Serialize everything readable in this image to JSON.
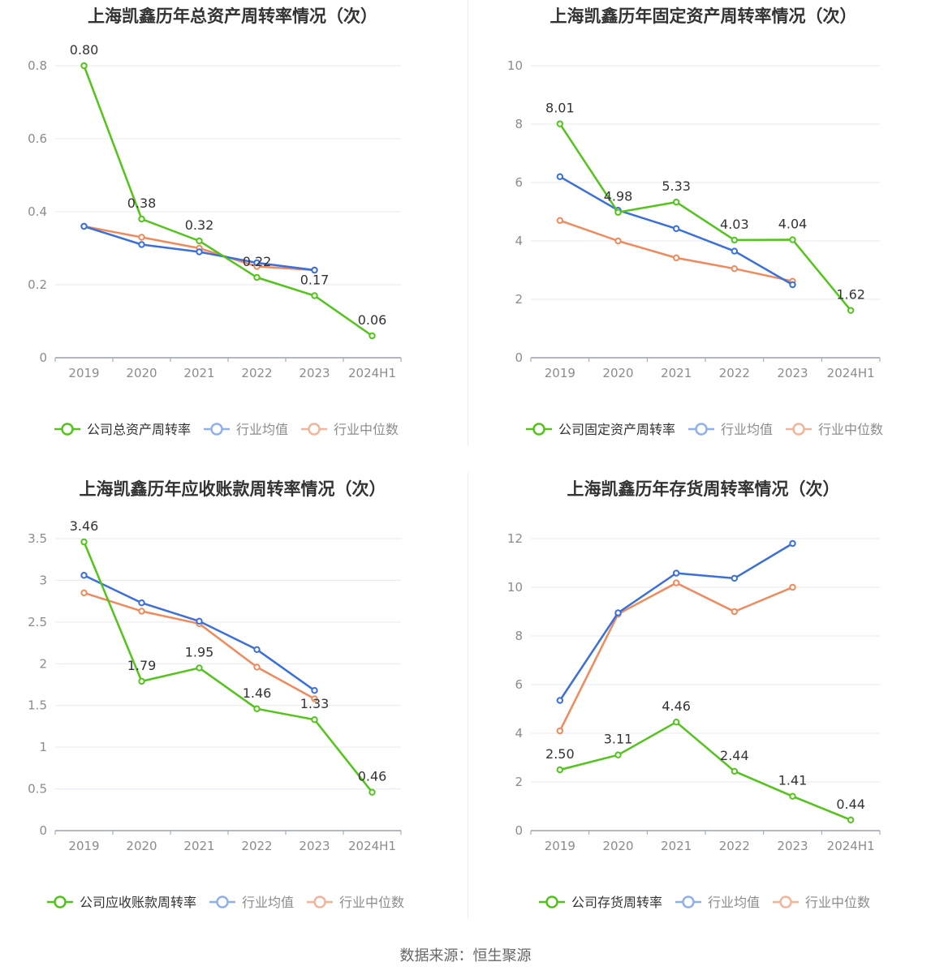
{
  "colors": {
    "company": "#52c41a",
    "average": "#3a6fdc",
    "median": "#f08a5d",
    "legend_average": "#8fb0ee",
    "legend_median": "#f4b49a"
  },
  "footer": "数据来源：恒生聚源",
  "chart_data": [
    {
      "type": "line",
      "title": "上海凯鑫历年总资产周转率情况（次）",
      "categories": [
        "2019",
        "2020",
        "2021",
        "2022",
        "2023",
        "2024H1"
      ],
      "ylim": [
        0,
        0.8
      ],
      "yticks": [
        0,
        0.2,
        0.4,
        0.6,
        0.8
      ],
      "ytick_labels": [
        "0",
        "0.2",
        "0.4",
        "0.6",
        "0.8"
      ],
      "grid": true,
      "legend_position": "bottom",
      "series": [
        {
          "name": "公司总资产周转率",
          "role": "company",
          "values": [
            0.8,
            0.38,
            0.32,
            0.22,
            0.17,
            0.06
          ],
          "labels": [
            "0.80",
            "0.38",
            "0.32",
            "0.22",
            "0.17",
            "0.06"
          ]
        },
        {
          "name": "行业均值",
          "role": "average",
          "values": [
            0.36,
            0.31,
            0.29,
            0.26,
            0.24,
            null
          ]
        },
        {
          "name": "行业中位数",
          "role": "median",
          "values": [
            0.36,
            0.33,
            0.3,
            0.25,
            0.24,
            null
          ]
        }
      ]
    },
    {
      "type": "line",
      "title": "上海凯鑫历年固定资产周转率情况（次）",
      "categories": [
        "2019",
        "2020",
        "2021",
        "2022",
        "2023",
        "2024H1"
      ],
      "ylim": [
        0,
        10
      ],
      "yticks": [
        0,
        2,
        4,
        6,
        8,
        10
      ],
      "ytick_labels": [
        "0",
        "2",
        "4",
        "6",
        "8",
        "10"
      ],
      "grid": true,
      "legend_position": "bottom",
      "series": [
        {
          "name": "公司固定资产周转率",
          "role": "company",
          "values": [
            8.01,
            4.98,
            5.33,
            4.03,
            4.04,
            1.62
          ],
          "labels": [
            "8.01",
            "4.98",
            "5.33",
            "4.03",
            "4.04",
            "1.62"
          ]
        },
        {
          "name": "行业均值",
          "role": "average",
          "values": [
            6.2,
            5.05,
            4.42,
            3.65,
            2.5,
            null
          ]
        },
        {
          "name": "行业中位数",
          "role": "median",
          "values": [
            4.7,
            4.0,
            3.42,
            3.05,
            2.62,
            null
          ]
        }
      ]
    },
    {
      "type": "line",
      "title": "上海凯鑫历年应收账款周转率情况（次）",
      "categories": [
        "2019",
        "2020",
        "2021",
        "2022",
        "2023",
        "2024H1"
      ],
      "ylim": [
        0,
        3.5
      ],
      "yticks": [
        0,
        0.5,
        1,
        1.5,
        2,
        2.5,
        3,
        3.5
      ],
      "ytick_labels": [
        "0",
        "0.5",
        "1",
        "1.5",
        "2",
        "2.5",
        "3",
        "3.5"
      ],
      "grid": true,
      "legend_position": "bottom",
      "series": [
        {
          "name": "公司应收账款周转率",
          "role": "company",
          "values": [
            3.46,
            1.79,
            1.95,
            1.46,
            1.33,
            0.46
          ],
          "labels": [
            "3.46",
            "1.79",
            "1.95",
            "1.46",
            "1.33",
            "0.46"
          ]
        },
        {
          "name": "行业均值",
          "role": "average",
          "values": [
            3.06,
            2.73,
            2.51,
            2.17,
            1.68,
            null
          ]
        },
        {
          "name": "行业中位数",
          "role": "median",
          "values": [
            2.85,
            2.63,
            2.48,
            1.96,
            1.58,
            null
          ]
        }
      ]
    },
    {
      "type": "line",
      "title": "上海凯鑫历年存货周转率情况（次）",
      "categories": [
        "2019",
        "2020",
        "2021",
        "2022",
        "2023",
        "2024H1"
      ],
      "ylim": [
        0,
        12
      ],
      "yticks": [
        0,
        2,
        4,
        6,
        8,
        10,
        12
      ],
      "ytick_labels": [
        "0",
        "2",
        "4",
        "6",
        "8",
        "10",
        "12"
      ],
      "grid": true,
      "legend_position": "bottom",
      "series": [
        {
          "name": "公司存货周转率",
          "role": "company",
          "values": [
            2.5,
            3.11,
            4.46,
            2.44,
            1.41,
            0.44
          ],
          "labels": [
            "2.50",
            "3.11",
            "4.46",
            "2.44",
            "1.41",
            "0.44"
          ]
        },
        {
          "name": "行业均值",
          "role": "average",
          "values": [
            5.35,
            8.95,
            10.58,
            10.37,
            11.8,
            null
          ]
        },
        {
          "name": "行业中位数",
          "role": "median",
          "values": [
            4.1,
            8.9,
            10.18,
            9.0,
            10.0,
            null
          ]
        }
      ]
    }
  ]
}
